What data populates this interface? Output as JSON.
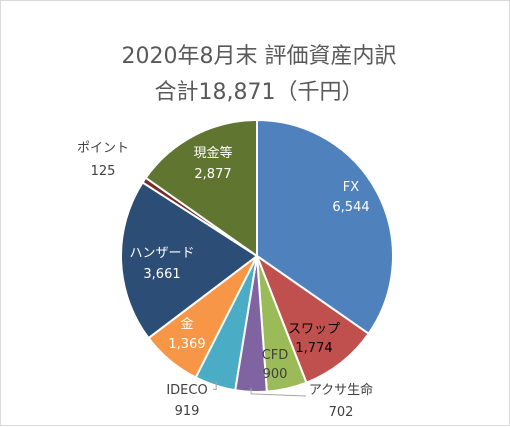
{
  "chart_data": {
    "type": "pie",
    "title": "2020年8月末  評価資産内訳",
    "subtitle": "合計18,871（千円）",
    "slices": [
      {
        "name": "FX",
        "value": 6544,
        "value_label": "6,544",
        "color": "#4f81bd"
      },
      {
        "name": "スワップ",
        "value": 1774,
        "value_label": "1,774",
        "color": "#c0504d"
      },
      {
        "name": "CFD",
        "value": 900,
        "value_label": "900",
        "color": "#9bbb59"
      },
      {
        "name": "アクサ生命",
        "value": 702,
        "value_label": "702",
        "color": "#8064a2"
      },
      {
        "name": "IDECO",
        "value": 919,
        "value_label": "919",
        "color": "#4bacc6"
      },
      {
        "name": "金",
        "value": 1369,
        "value_label": "1,369",
        "color": "#f79646"
      },
      {
        "name": "ハンザード",
        "value": 3661,
        "value_label": "3,661",
        "color": "#2c4d75"
      },
      {
        "name": "ポイント",
        "value": 125,
        "value_label": "125",
        "color": "#772c2a"
      },
      {
        "name": "現金等",
        "value": 2877,
        "value_label": "2,877",
        "color": "#5f7530"
      }
    ],
    "legend": "none"
  }
}
